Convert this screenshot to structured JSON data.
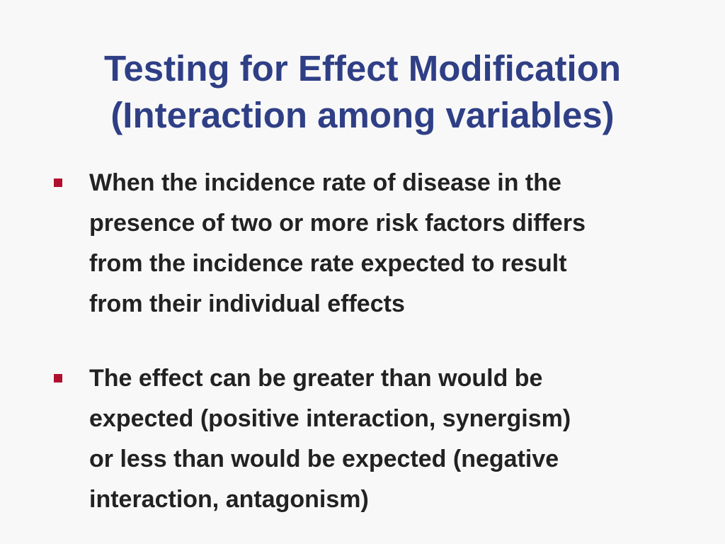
{
  "slide": {
    "title_lines": [
      "Testing for Effect Modification",
      "(Interaction among variables)"
    ],
    "bullets": [
      {
        "lines": [
          "When the incidence rate of disease in the",
          "presence of two or more risk factors differs",
          "from the incidence rate expected to result",
          "from their individual effects"
        ]
      },
      {
        "lines": [
          "The effect can be greater than would be",
          "expected (positive interaction, synergism)",
          "or less than would be expected (negative",
          "interaction, antagonism)"
        ]
      }
    ],
    "colors": {
      "background": "#f8f8f8",
      "title": "#2f3f86",
      "body_text": "#222222",
      "bullet_marker": "#b0102f"
    },
    "bullet_marker_icon": "square-bullet-icon"
  }
}
